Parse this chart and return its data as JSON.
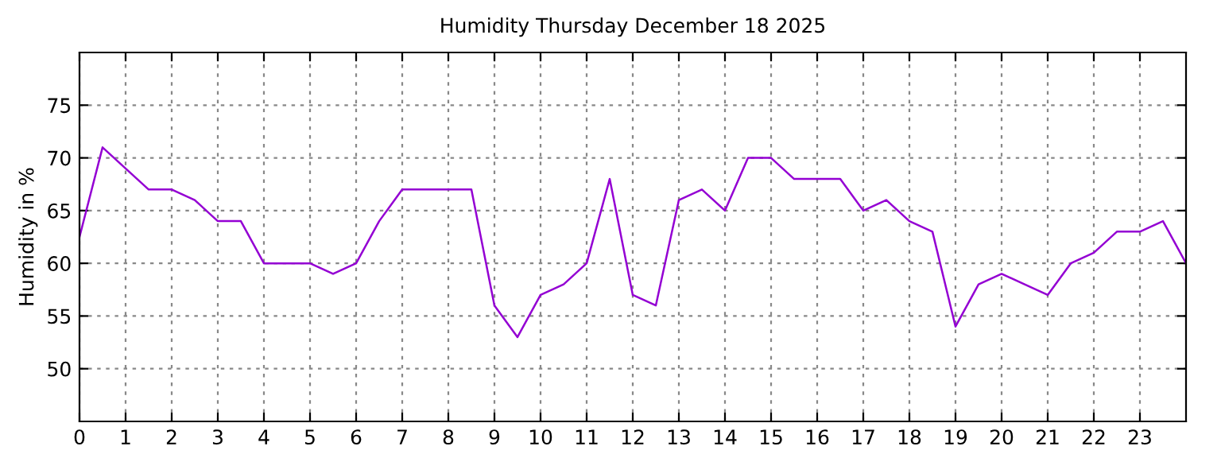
{
  "chart_data": {
    "type": "line",
    "title": "Humidity Thursday December 18 2025",
    "ylabel": "Humidity in %",
    "x": [
      0,
      0.5,
      1,
      1.5,
      2,
      2.5,
      3,
      3.5,
      4,
      4.5,
      5,
      5.5,
      6,
      6.5,
      7,
      7.5,
      8,
      8.5,
      9,
      9.5,
      10,
      10.5,
      11,
      11.5,
      12,
      12.5,
      13,
      13.5,
      14,
      14.5,
      15,
      15.5,
      16,
      16.5,
      17,
      17.5,
      18,
      18.5,
      19,
      19.5,
      20,
      20.5,
      21,
      21.5,
      22,
      22.5,
      23,
      23.5,
      24
    ],
    "series": [
      {
        "color": "#9400d3",
        "values": [
          62.5,
          71,
          69,
          67,
          67,
          66,
          64,
          64,
          60,
          60,
          60,
          59,
          60,
          64,
          67,
          67,
          67,
          67,
          56,
          53,
          57,
          58,
          60,
          68,
          57,
          56,
          66,
          67,
          65,
          70,
          70,
          68,
          68,
          68,
          65,
          66,
          64,
          63,
          54,
          58,
          59,
          58,
          57,
          60,
          61,
          63,
          63,
          64,
          60
        ]
      }
    ],
    "xlim": [
      0,
      24
    ],
    "xticks": [
      0,
      1,
      2,
      3,
      4,
      5,
      6,
      7,
      8,
      9,
      10,
      11,
      12,
      13,
      14,
      15,
      16,
      17,
      18,
      19,
      20,
      21,
      22,
      23
    ],
    "ylim": [
      45,
      80
    ],
    "yticks": [
      50,
      55,
      60,
      65,
      70,
      75
    ],
    "grid": true,
    "marker": "none",
    "line_style": "solid"
  }
}
